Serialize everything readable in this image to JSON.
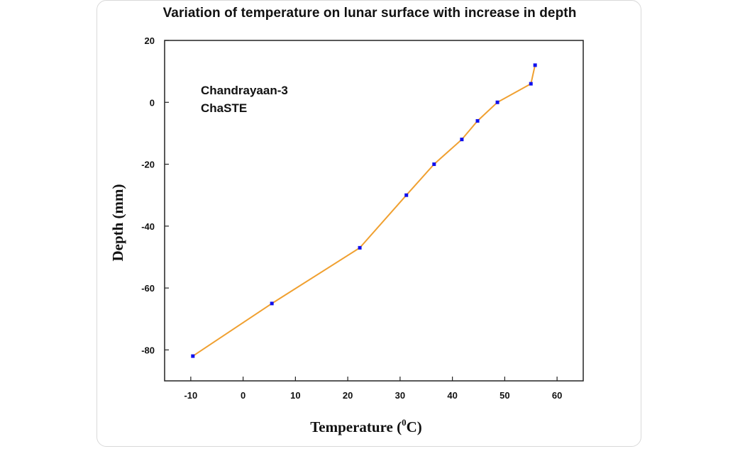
{
  "chart_data": {
    "type": "line",
    "title": "Variation of temperature on lunar surface with increase in depth",
    "xlabel": "Temperature",
    "xlabel_unit_sup": "0",
    "xlabel_unit_rest": "C)",
    "ylabel": "Depth (mm)",
    "xlim": [
      -15,
      65
    ],
    "ylim": [
      -90,
      20
    ],
    "xticks": [
      -10,
      0,
      10,
      20,
      30,
      40,
      50,
      60
    ],
    "yticks": [
      20,
      0,
      -20,
      -40,
      -60,
      -80
    ],
    "annotations": [
      "Chandrayaan-3",
      "ChaSTE"
    ],
    "grid": false,
    "legend": "none",
    "line_color": "#f0a030",
    "marker_color": "#1010ee",
    "series": [
      {
        "x": [
          -9.6,
          5.5,
          22.3,
          31.2,
          36.5,
          41.8,
          44.8,
          48.6,
          55.0,
          55.8
        ],
        "y": [
          -82,
          -65,
          -47,
          -30,
          -20,
          -12,
          -6,
          0,
          6,
          12
        ]
      }
    ]
  }
}
